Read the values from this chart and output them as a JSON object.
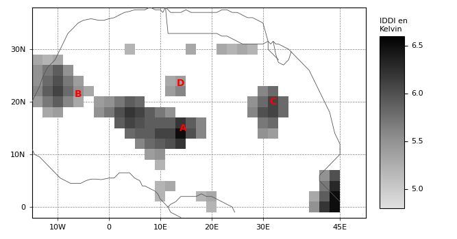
{
  "lon_min": -15,
  "lon_max": 50,
  "lat_min": -2,
  "lat_max": 38,
  "xticks": [
    -10,
    0,
    10,
    20,
    30,
    45
  ],
  "yticks": [
    0,
    10,
    20,
    30
  ],
  "xlabel_labels": [
    "10W",
    "0",
    "10E",
    "20E",
    "30E",
    "45E"
  ],
  "ylabel_labels": [
    "0",
    "10N",
    "20N",
    "30N"
  ],
  "colorbar_label": "IDDI en\nKelvin",
  "vmin": 4.8,
  "vmax": 6.6,
  "cbar_ticks": [
    5.0,
    5.5,
    6.0,
    6.5
  ],
  "label_color": "red",
  "labels": [
    {
      "text": "A",
      "lon": 14.5,
      "lat": 15.0
    },
    {
      "text": "B",
      "lon": -6.0,
      "lat": 21.5
    },
    {
      "text": "C",
      "lon": 32.0,
      "lat": 20.0
    },
    {
      "text": "D",
      "lon": 14.0,
      "lat": 23.5
    }
  ],
  "cell_size": 2.0,
  "data_cells": [
    {
      "lon": -14,
      "lat": 28,
      "val": 5.3
    },
    {
      "lon": -12,
      "lat": 28,
      "val": 5.2
    },
    {
      "lon": -10,
      "lat": 28,
      "val": 5.3
    },
    {
      "lon": -14,
      "lat": 26,
      "val": 5.5
    },
    {
      "lon": -12,
      "lat": 26,
      "val": 5.7
    },
    {
      "lon": -10,
      "lat": 26,
      "val": 5.9
    },
    {
      "lon": -8,
      "lat": 26,
      "val": 5.5
    },
    {
      "lon": -14,
      "lat": 24,
      "val": 5.5
    },
    {
      "lon": -12,
      "lat": 24,
      "val": 5.8
    },
    {
      "lon": -10,
      "lat": 24,
      "val": 6.0
    },
    {
      "lon": -8,
      "lat": 24,
      "val": 5.7
    },
    {
      "lon": -6,
      "lat": 24,
      "val": 5.4
    },
    {
      "lon": -14,
      "lat": 22,
      "val": 5.6
    },
    {
      "lon": -12,
      "lat": 22,
      "val": 5.9
    },
    {
      "lon": -10,
      "lat": 22,
      "val": 6.1
    },
    {
      "lon": -8,
      "lat": 22,
      "val": 5.8
    },
    {
      "lon": -6,
      "lat": 22,
      "val": 5.5
    },
    {
      "lon": -4,
      "lat": 22,
      "val": 5.3
    },
    {
      "lon": -14,
      "lat": 20,
      "val": 5.4
    },
    {
      "lon": -12,
      "lat": 20,
      "val": 5.7
    },
    {
      "lon": -10,
      "lat": 20,
      "val": 5.9
    },
    {
      "lon": -8,
      "lat": 20,
      "val": 5.6
    },
    {
      "lon": -6,
      "lat": 20,
      "val": 5.3
    },
    {
      "lon": -2,
      "lat": 20,
      "val": 5.4
    },
    {
      "lon": 0,
      "lat": 20,
      "val": 5.5
    },
    {
      "lon": 2,
      "lat": 20,
      "val": 5.7
    },
    {
      "lon": 4,
      "lat": 20,
      "val": 5.9
    },
    {
      "lon": 6,
      "lat": 20,
      "val": 5.8
    },
    {
      "lon": -12,
      "lat": 18,
      "val": 5.3
    },
    {
      "lon": -10,
      "lat": 18,
      "val": 5.4
    },
    {
      "lon": -2,
      "lat": 18,
      "val": 5.5
    },
    {
      "lon": 0,
      "lat": 18,
      "val": 5.7
    },
    {
      "lon": 2,
      "lat": 18,
      "val": 6.0
    },
    {
      "lon": 4,
      "lat": 18,
      "val": 6.2
    },
    {
      "lon": 6,
      "lat": 18,
      "val": 6.1
    },
    {
      "lon": 8,
      "lat": 18,
      "val": 5.9
    },
    {
      "lon": 10,
      "lat": 18,
      "val": 5.7
    },
    {
      "lon": 12,
      "lat": 18,
      "val": 5.5
    },
    {
      "lon": 2,
      "lat": 16,
      "val": 5.9
    },
    {
      "lon": 4,
      "lat": 16,
      "val": 6.1
    },
    {
      "lon": 6,
      "lat": 16,
      "val": 6.0
    },
    {
      "lon": 8,
      "lat": 16,
      "val": 5.9
    },
    {
      "lon": 10,
      "lat": 16,
      "val": 5.9
    },
    {
      "lon": 12,
      "lat": 16,
      "val": 5.9
    },
    {
      "lon": 14,
      "lat": 16,
      "val": 6.2
    },
    {
      "lon": 16,
      "lat": 16,
      "val": 5.9
    },
    {
      "lon": 18,
      "lat": 16,
      "val": 5.6
    },
    {
      "lon": 4,
      "lat": 14,
      "val": 5.8
    },
    {
      "lon": 6,
      "lat": 14,
      "val": 5.9
    },
    {
      "lon": 8,
      "lat": 14,
      "val": 5.9
    },
    {
      "lon": 10,
      "lat": 14,
      "val": 6.1
    },
    {
      "lon": 12,
      "lat": 14,
      "val": 6.1
    },
    {
      "lon": 14,
      "lat": 14,
      "val": 6.5
    },
    {
      "lon": 16,
      "lat": 14,
      "val": 6.0
    },
    {
      "lon": 18,
      "lat": 14,
      "val": 5.6
    },
    {
      "lon": 6,
      "lat": 12,
      "val": 5.6
    },
    {
      "lon": 8,
      "lat": 12,
      "val": 5.8
    },
    {
      "lon": 10,
      "lat": 12,
      "val": 5.9
    },
    {
      "lon": 12,
      "lat": 12,
      "val": 6.0
    },
    {
      "lon": 14,
      "lat": 12,
      "val": 6.2
    },
    {
      "lon": 8,
      "lat": 10,
      "val": 5.4
    },
    {
      "lon": 10,
      "lat": 10,
      "val": 5.5
    },
    {
      "lon": 10,
      "lat": 8,
      "val": 5.2
    },
    {
      "lon": 12,
      "lat": 22,
      "val": 5.4
    },
    {
      "lon": 14,
      "lat": 22,
      "val": 5.6
    },
    {
      "lon": 12,
      "lat": 24,
      "val": 5.3
    },
    {
      "lon": 14,
      "lat": 24,
      "val": 5.4
    },
    {
      "lon": 10,
      "lat": 4,
      "val": 5.2
    },
    {
      "lon": 12,
      "lat": 4,
      "val": 5.3
    },
    {
      "lon": 10,
      "lat": 2,
      "val": 5.2
    },
    {
      "lon": 18,
      "lat": 2,
      "val": 5.2
    },
    {
      "lon": 20,
      "lat": 0,
      "val": 5.2
    },
    {
      "lon": 20,
      "lat": 2,
      "val": 5.3
    },
    {
      "lon": 30,
      "lat": 22,
      "val": 5.6
    },
    {
      "lon": 32,
      "lat": 22,
      "val": 5.8
    },
    {
      "lon": 28,
      "lat": 20,
      "val": 5.5
    },
    {
      "lon": 30,
      "lat": 20,
      "val": 5.8
    },
    {
      "lon": 32,
      "lat": 20,
      "val": 6.1
    },
    {
      "lon": 34,
      "lat": 20,
      "val": 5.8
    },
    {
      "lon": 28,
      "lat": 18,
      "val": 5.6
    },
    {
      "lon": 30,
      "lat": 18,
      "val": 6.0
    },
    {
      "lon": 32,
      "lat": 18,
      "val": 6.1
    },
    {
      "lon": 34,
      "lat": 18,
      "val": 5.8
    },
    {
      "lon": 30,
      "lat": 16,
      "val": 5.7
    },
    {
      "lon": 32,
      "lat": 16,
      "val": 5.8
    },
    {
      "lon": 30,
      "lat": 14,
      "val": 5.5
    },
    {
      "lon": 32,
      "lat": 14,
      "val": 5.4
    },
    {
      "lon": 4,
      "lat": 30,
      "val": 5.2
    },
    {
      "lon": 16,
      "lat": 30,
      "val": 5.3
    },
    {
      "lon": 22,
      "lat": 30,
      "val": 5.3
    },
    {
      "lon": 24,
      "lat": 30,
      "val": 5.2
    },
    {
      "lon": 26,
      "lat": 30,
      "val": 5.3
    },
    {
      "lon": 28,
      "lat": 30,
      "val": 5.2
    },
    {
      "lon": 42,
      "lat": 6,
      "val": 5.5
    },
    {
      "lon": 44,
      "lat": 6,
      "val": 6.0
    },
    {
      "lon": 42,
      "lat": 4,
      "val": 5.7
    },
    {
      "lon": 44,
      "lat": 4,
      "val": 6.3
    },
    {
      "lon": 40,
      "lat": 2,
      "val": 5.3
    },
    {
      "lon": 42,
      "lat": 2,
      "val": 5.9
    },
    {
      "lon": 44,
      "lat": 2,
      "val": 6.5
    },
    {
      "lon": 40,
      "lat": 0,
      "val": 5.5
    },
    {
      "lon": 42,
      "lat": 0,
      "val": 6.2
    },
    {
      "lon": 44,
      "lat": 0,
      "val": 6.5
    }
  ]
}
